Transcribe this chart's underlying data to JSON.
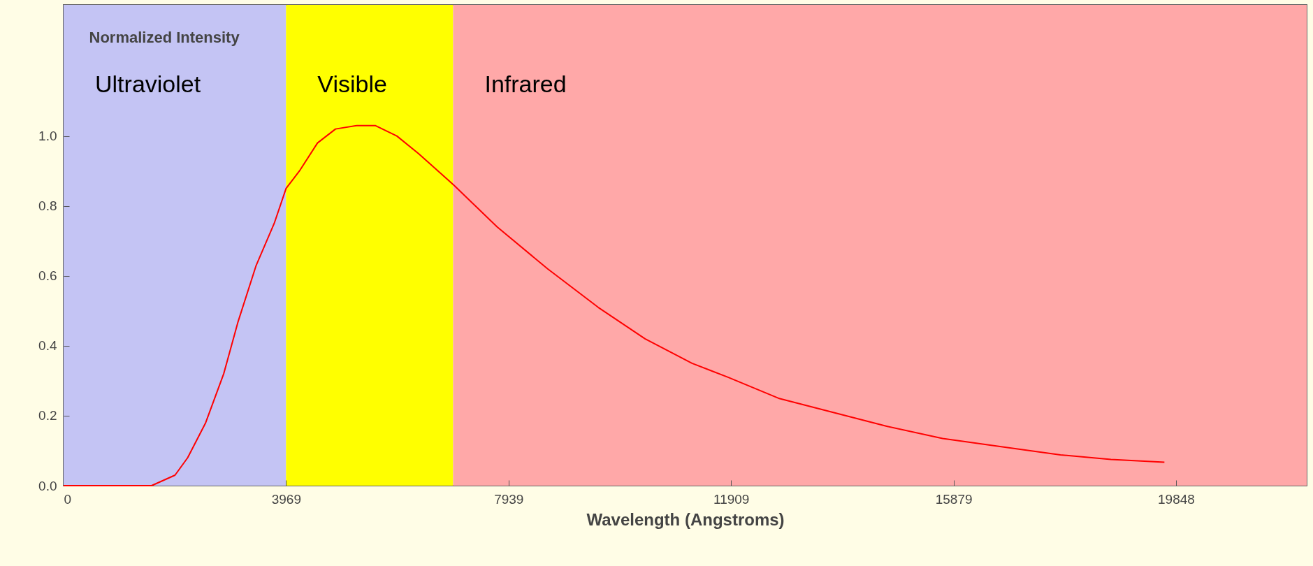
{
  "chart_data": {
    "type": "line",
    "xlabel": "Wavelength (Angstroms)",
    "ylabel": "Normalized Intensity",
    "x": [
      0,
      1570,
      1988,
      2214,
      2535,
      2857,
      3115,
      3436,
      3758,
      3970,
      4208,
      4530,
      4852,
      5238,
      5560,
      5946,
      6332,
      6960,
      7736,
      8637,
      9538,
      10375,
      11212,
      11855,
      12756,
      13721,
      14686,
      15683,
      16886,
      17786,
      18687,
      19641
    ],
    "series": [
      {
        "color": "#ff0000",
        "values": [
          0,
          0,
          0.03,
          0.08,
          0.18,
          0.32,
          0.47,
          0.63,
          0.75,
          0.85,
          0.9,
          0.98,
          1.02,
          1.03,
          1.03,
          1.0,
          0.95,
          0.86,
          0.74,
          0.62,
          0.51,
          0.42,
          0.35,
          0.31,
          0.25,
          0.21,
          0.17,
          0.135,
          0.108,
          0.088,
          0.075,
          0.067
        ]
      }
    ],
    "bands": [
      {
        "axis": "x",
        "from": 0,
        "to": 3969,
        "label": "Ultraviolet",
        "color": "#c4c4f4"
      },
      {
        "axis": "x",
        "from": 3969,
        "to": 6950,
        "label": "Visible",
        "color": "#ffff00"
      },
      {
        "axis": "x",
        "from": 6950,
        "to": 22180,
        "label": "Infrared",
        "color": "#ffa8a8"
      }
    ],
    "xlim": [
      0,
      22180
    ],
    "xticks": [
      0,
      3969,
      7939,
      11909,
      15879,
      19848
    ],
    "ylim": [
      0,
      1.375
    ],
    "yticks": [
      {
        "value": 0,
        "label": "0.0"
      },
      {
        "value": 0.2,
        "label": "0.2"
      },
      {
        "value": 0.4,
        "label": "0.4"
      },
      {
        "value": 0.6,
        "label": "0.6"
      },
      {
        "value": 0.8,
        "label": "0.8"
      },
      {
        "value": 1,
        "label": "1.0"
      }
    ],
    "grid": false,
    "marker": "none",
    "line_style": "solid"
  }
}
